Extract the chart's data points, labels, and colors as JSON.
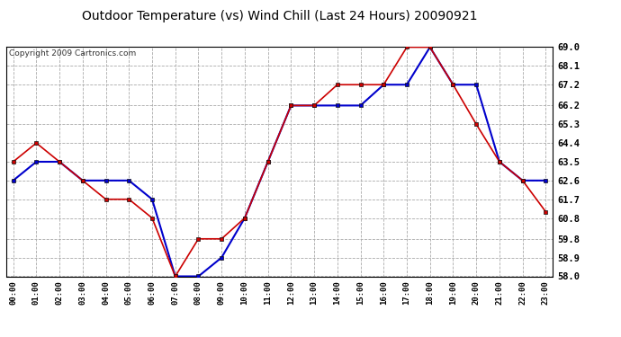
{
  "title": "Outdoor Temperature (vs) Wind Chill (Last 24 Hours) 20090921",
  "copyright": "Copyright 2009 Cartronics.com",
  "hours": [
    "00:00",
    "01:00",
    "02:00",
    "03:00",
    "04:00",
    "05:00",
    "06:00",
    "07:00",
    "08:00",
    "09:00",
    "10:00",
    "11:00",
    "12:00",
    "13:00",
    "14:00",
    "15:00",
    "16:00",
    "17:00",
    "18:00",
    "19:00",
    "20:00",
    "21:00",
    "22:00",
    "23:00"
  ],
  "temp": [
    63.5,
    64.4,
    63.5,
    62.6,
    61.7,
    61.7,
    60.8,
    58.0,
    59.8,
    59.8,
    60.8,
    63.5,
    66.2,
    66.2,
    67.2,
    67.2,
    67.2,
    69.0,
    69.0,
    67.2,
    65.3,
    63.5,
    62.6,
    61.1
  ],
  "windchill": [
    62.6,
    63.5,
    63.5,
    62.6,
    62.6,
    62.6,
    61.7,
    58.0,
    58.0,
    58.9,
    60.8,
    63.5,
    66.2,
    66.2,
    66.2,
    66.2,
    67.2,
    67.2,
    69.0,
    67.2,
    67.2,
    63.5,
    62.6,
    62.6
  ],
  "temp_color": "#cc0000",
  "windchill_color": "#0000cc",
  "ylim_min": 58.0,
  "ylim_max": 69.0,
  "yticks": [
    58.0,
    58.9,
    59.8,
    60.8,
    61.7,
    62.6,
    63.5,
    64.4,
    65.3,
    66.2,
    67.2,
    68.1,
    69.0
  ],
  "bg_color": "#ffffff",
  "grid_color": "#aaaaaa",
  "title_fontsize": 10,
  "copyright_fontsize": 6.5
}
